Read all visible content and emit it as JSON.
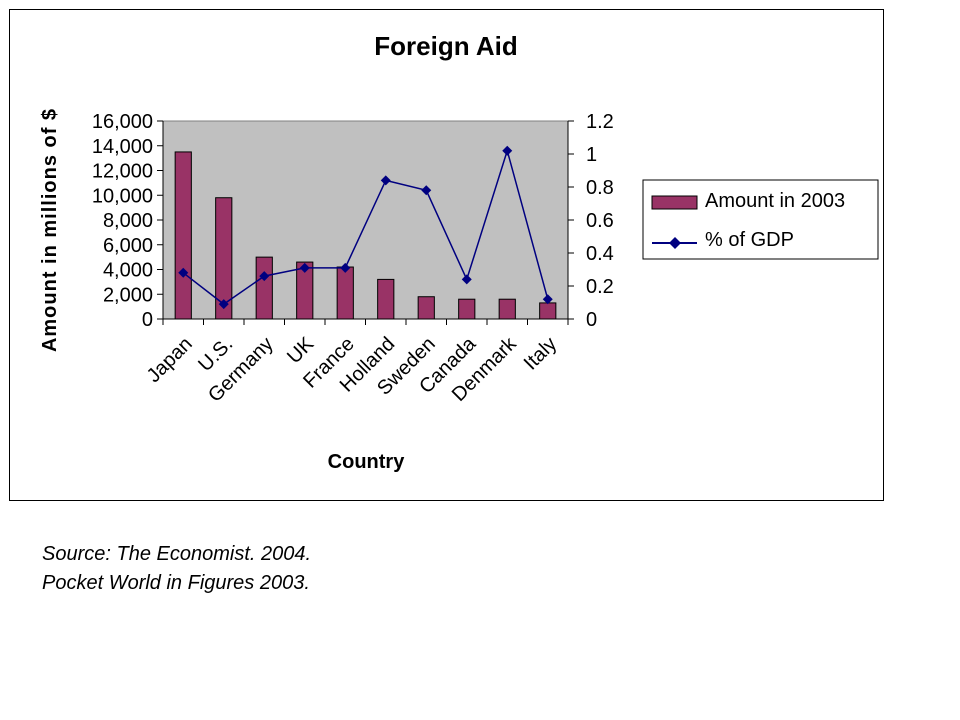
{
  "chart_data": {
    "type": "bar+line",
    "title": "Foreign Aid",
    "xlabel": "Country",
    "ylabel": "Amount in millions of $",
    "categories": [
      "Japan",
      "U.S.",
      "Germany",
      "UK",
      "France",
      "Holland",
      "Sweden",
      "Canada",
      "Denmark",
      "Italy"
    ],
    "series": [
      {
        "name": "Amount in 2003",
        "type": "bar",
        "axis": "left",
        "values": [
          13500,
          9800,
          5000,
          4600,
          4200,
          3200,
          1800,
          1600,
          1600,
          1300
        ]
      },
      {
        "name": "% of GDP",
        "type": "line",
        "axis": "right",
        "values": [
          0.28,
          0.09,
          0.26,
          0.31,
          0.31,
          0.84,
          0.78,
          0.24,
          1.02,
          0.12
        ]
      }
    ],
    "ylim": [
      0,
      16000
    ],
    "y_ticks": [
      "0",
      "2,000",
      "4,000",
      "6,000",
      "8,000",
      "10,000",
      "12,000",
      "14,000",
      "16,000"
    ],
    "y_tick_values": [
      0,
      2000,
      4000,
      6000,
      8000,
      10000,
      12000,
      14000,
      16000
    ],
    "y2lim": [
      0,
      1.2
    ],
    "y2_ticks": [
      "0",
      "0.2",
      "0.4",
      "0.6",
      "0.8",
      "1",
      "1.2"
    ],
    "y2_tick_values": [
      0,
      0.2,
      0.4,
      0.6,
      0.8,
      1.0,
      1.2
    ],
    "legend_position": "right",
    "colors": {
      "bar": "#993366",
      "line": "#000080",
      "plot_bg": "#c0c0c0"
    }
  },
  "caption": {
    "source_label": "Source",
    "source_rest": ": The Economist. 2004.",
    "line2": "Pocket World in Figures 2003."
  }
}
